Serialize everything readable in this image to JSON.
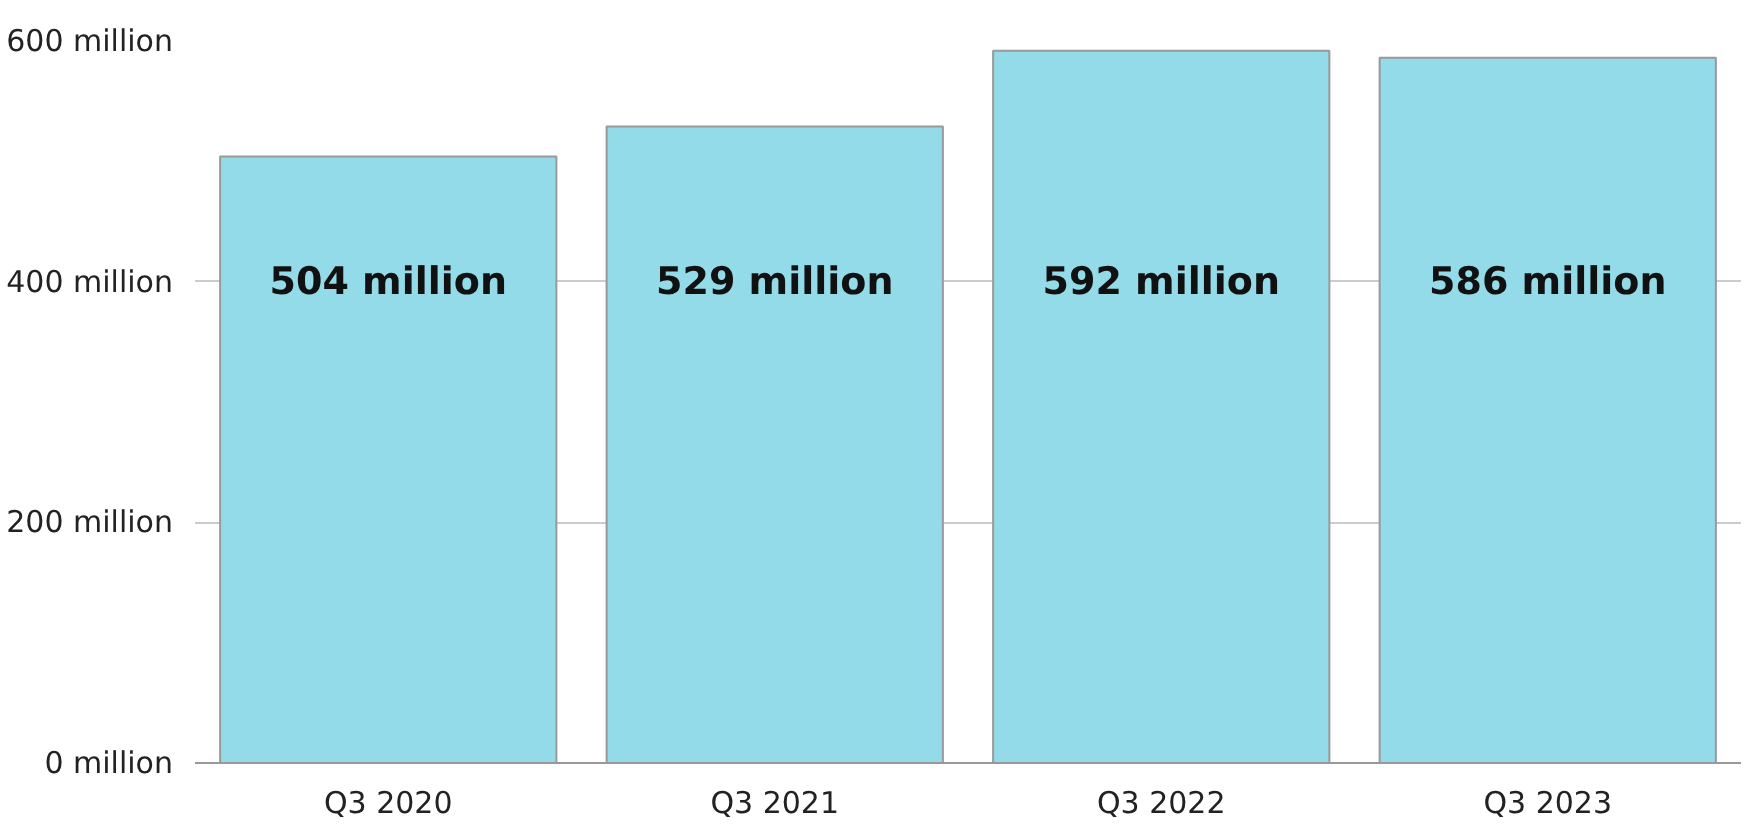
{
  "chart_data": {
    "type": "bar",
    "categories": [
      "Q3 2020",
      "Q3 2021",
      "Q3 2022",
      "Q3 2023"
    ],
    "values": [
      504,
      529,
      592,
      586
    ],
    "value_labels": [
      "504 million",
      "529 million",
      "592 million",
      "586 million"
    ],
    "color": "#93dbe8",
    "ylim": [
      0,
      600
    ],
    "yticks": [
      {
        "value": 0,
        "label": "0 million"
      },
      {
        "value": 200,
        "label": "200 million"
      },
      {
        "value": 400,
        "label": "400 million"
      },
      {
        "value": 600,
        "label": "600 million"
      }
    ],
    "grid": "y"
  }
}
